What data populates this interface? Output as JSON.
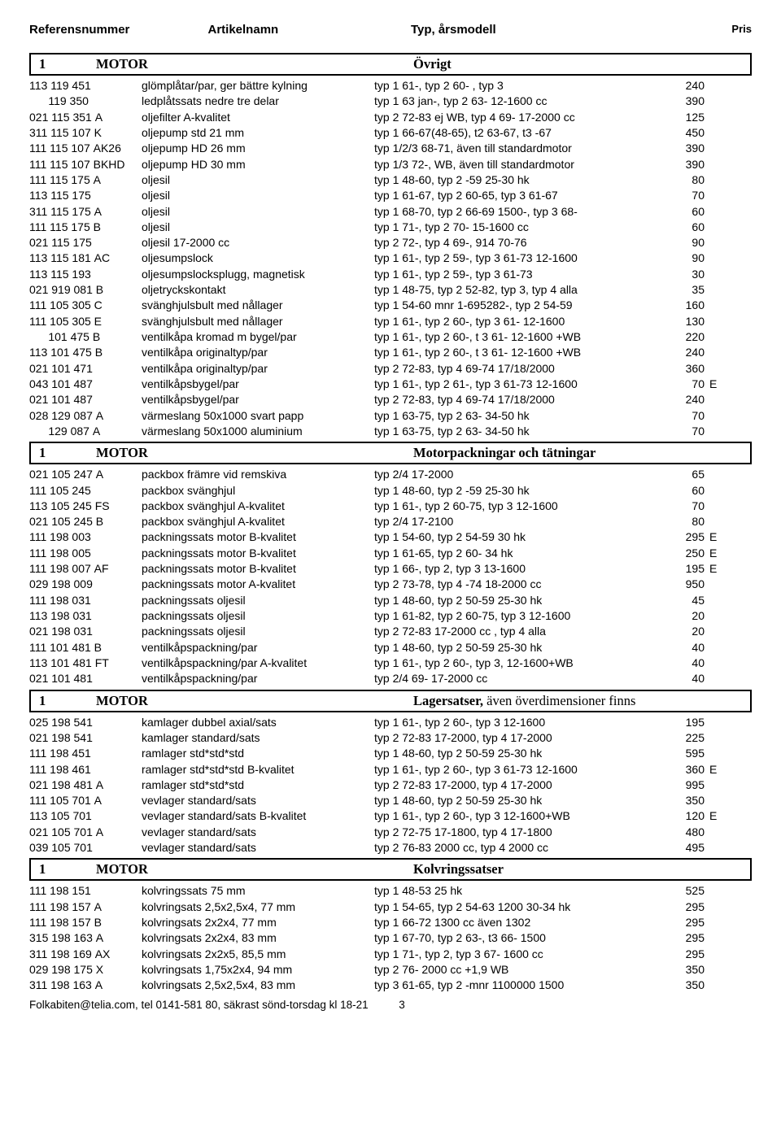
{
  "header": {
    "ref": "Referensnummer",
    "art": "Artikelnamn",
    "typ": "Typ, årsmodell",
    "pris": "Pris"
  },
  "sections": [
    {
      "num": "1",
      "title": "MOTOR",
      "sub": "Övrigt",
      "rows": [
        {
          "ref": "113 119 451",
          "art": "glömplåtar/par, ger bättre kylning",
          "typ": "typ 1 61-, typ 2 60- , typ 3",
          "pris": "240",
          "mark": ""
        },
        {
          "ref": "      119 350",
          "art": "ledplåtssats nedre tre delar",
          "typ": "typ 1 63 jan-, typ 2 63- 12-1600 cc",
          "pris": "390",
          "mark": ""
        },
        {
          "ref": "021 115 351 A",
          "art": "oljefilter A-kvalitet",
          "typ": "typ 2 72-83 ej WB, typ 4 69- 17-2000 cc",
          "pris": "125",
          "mark": ""
        },
        {
          "ref": "311 115 107 K",
          "art": "oljepump std 21 mm",
          "typ": "typ 1 66-67(48-65), t2 63-67, t3 -67",
          "pris": "450",
          "mark": ""
        },
        {
          "ref": "111 115 107 AK26",
          "art": "oljepump HD 26 mm",
          "typ": "typ 1/2/3 68-71, även till standardmotor",
          "pris": "390",
          "mark": ""
        },
        {
          "ref": "111 115 107 BKHD",
          "art": "oljepump HD 30 mm",
          "typ": "typ 1/3 72-, WB, även till standardmotor",
          "pris": "390",
          "mark": ""
        },
        {
          "ref": "111 115 175 A",
          "art": "oljesil",
          "typ": "typ 1 48-60, typ 2 -59 25-30 hk",
          "pris": "80",
          "mark": ""
        },
        {
          "ref": "113 115 175",
          "art": "oljesil",
          "typ": "typ 1 61-67, typ 2 60-65, typ 3 61-67",
          "pris": "70",
          "mark": ""
        },
        {
          "ref": "311 115 175 A",
          "art": "oljesil",
          "typ": "typ 1 68-70, typ 2 66-69 1500-, typ 3 68-",
          "pris": "60",
          "mark": ""
        },
        {
          "ref": "111 115 175 B",
          "art": "oljesil",
          "typ": "typ 1 71-, typ 2 70- 15-1600 cc",
          "pris": "60",
          "mark": ""
        },
        {
          "ref": "021 115 175",
          "art": "oljesil 17-2000 cc",
          "typ": "typ 2 72-, typ 4 69-, 914 70-76",
          "pris": "90",
          "mark": ""
        },
        {
          "ref": "113 115 181 AC",
          "art": "oljesumpslock",
          "typ": "typ 1 61-, typ 2 59-, typ 3 61-73 12-1600",
          "pris": "90",
          "mark": ""
        },
        {
          "ref": "113 115 193",
          "art": "oljesumpslocksplugg, magnetisk",
          "typ": "typ 1 61-, typ 2 59-, typ 3 61-73",
          "pris": "30",
          "mark": ""
        },
        {
          "ref": "021 919 081 B",
          "art": "oljetryckskontakt",
          "typ": "typ 1 48-75, typ 2 52-82, typ 3, typ 4 alla",
          "pris": "35",
          "mark": ""
        },
        {
          "ref": "111 105 305 C",
          "art": "svänghjulsbult med nållager",
          "typ": "typ 1 54-60 mnr 1-695282-, typ 2 54-59",
          "pris": "160",
          "mark": ""
        },
        {
          "ref": "111 105 305 E",
          "art": "svänghjulsbult med nållager",
          "typ": "typ 1 61-, typ 2 60-, typ 3 61- 12-1600",
          "pris": "130",
          "mark": ""
        },
        {
          "ref": "      101 475 B",
          "art": "ventilkåpa kromad m bygel/par",
          "typ": "typ 1 61-, typ 2 60-, t 3 61- 12-1600 +WB",
          "pris": "220",
          "mark": ""
        },
        {
          "ref": "113 101 475 B",
          "art": "ventilkåpa originaltyp/par",
          "typ": "typ 1 61-, typ 2 60-, t 3 61- 12-1600 +WB",
          "pris": "240",
          "mark": ""
        },
        {
          "ref": "021 101 471",
          "art": "ventilkåpa originaltyp/par",
          "typ": "typ 2 72-83, typ 4 69-74 17/18/2000",
          "pris": "360",
          "mark": ""
        },
        {
          "ref": "043 101 487",
          "art": "ventilkåpsbygel/par",
          "typ": "typ 1 61-, typ 2 61-, typ 3 61-73 12-1600",
          "pris": "70",
          "mark": "E"
        },
        {
          "ref": "021 101 487",
          "art": "ventilkåpsbygel/par",
          "typ": "typ 2 72-83, typ 4 69-74 17/18/2000",
          "pris": "240",
          "mark": ""
        },
        {
          "ref": "028 129 087 A",
          "art": "värmeslang 50x1000 svart papp",
          "typ": "typ 1 63-75, typ 2 63- 34-50 hk",
          "pris": "70",
          "mark": ""
        },
        {
          "ref": "      129 087 A",
          "art": "värmeslang 50x1000 aluminium",
          "typ": "typ 1 63-75, typ 2 63- 34-50 hk",
          "pris": "70",
          "mark": ""
        }
      ]
    },
    {
      "num": "1",
      "title": "MOTOR",
      "sub": "Motorpackningar och tätningar",
      "rows": [
        {
          "ref": "021 105 247 A",
          "art": "packbox främre vid remskiva",
          "typ": "typ 2/4 17-2000",
          "pris": "65",
          "mark": ""
        },
        {
          "ref": "111 105 245",
          "art": "packbox svänghjul",
          "typ": "typ 1 48-60, typ 2 -59  25-30 hk",
          "pris": "60",
          "mark": ""
        },
        {
          "ref": "113 105 245 FS",
          "art": "packbox svänghjul A-kvalitet",
          "typ": "typ 1 61-, typ 2 60-75, typ 3 12-1600",
          "pris": "70",
          "mark": ""
        },
        {
          "ref": "021 105 245 B",
          "art": "packbox svänghjul A-kvalitet",
          "typ": "typ 2/4 17-2100",
          "pris": "80",
          "mark": ""
        },
        {
          "ref": "111 198 003",
          "art": "packningssats motor B-kvalitet",
          "typ": "typ 1 54-60, typ 2 54-59 30 hk",
          "pris": "295",
          "mark": "E"
        },
        {
          "ref": "111 198 005",
          "art": "packningssats motor B-kvalitet",
          "typ": "typ 1 61-65, typ 2 60- 34 hk",
          "pris": "250",
          "mark": "E"
        },
        {
          "ref": "111 198 007 AF",
          "art": "packningssats motor B-kvalitet",
          "typ": "typ 1 66-, typ 2, typ 3 13-1600",
          "pris": "195",
          "mark": "E"
        },
        {
          "ref": "029 198 009",
          "art": "packningssats motor A-kvalitet",
          "typ": "typ 2 73-78, typ 4 -74 18-2000 cc",
          "pris": "950",
          "mark": ""
        },
        {
          "ref": "111 198 031",
          "art": "packningssats oljesil",
          "typ": "typ 1 48-60, typ 2 50-59 25-30 hk",
          "pris": "45",
          "mark": ""
        },
        {
          "ref": "113 198 031",
          "art": "packningssats oljesil",
          "typ": "typ 1 61-82, typ 2 60-75, typ 3 12-1600",
          "pris": "20",
          "mark": ""
        },
        {
          "ref": "021 198 031",
          "art": "packningssats oljesil",
          "typ": "typ 2 72-83 17-2000 cc , typ 4 alla",
          "pris": "20",
          "mark": ""
        },
        {
          "ref": "111 101 481 B",
          "art": "ventilkåpspackning/par",
          "typ": "typ 1 48-60, typ 2 50-59 25-30 hk",
          "pris": "40",
          "mark": ""
        },
        {
          "ref": "113 101 481 FT",
          "art": "ventilkåpspackning/par A-kvalitet",
          "typ": "typ 1 61-, typ 2 60-, typ 3, 12-1600+WB",
          "pris": "40",
          "mark": ""
        },
        {
          "ref": "021 101 481",
          "art": "ventilkåpspackning/par",
          "typ": "typ 2/4 69- 17-2000 cc",
          "pris": "40",
          "mark": ""
        }
      ]
    },
    {
      "num": "1",
      "title": "MOTOR",
      "sub_html": "Lagersatser, <span class='thin'>även överdimensioner finns</span>",
      "rows": [
        {
          "ref": "025 198 541",
          "art": "kamlager dubbel axial/sats",
          "typ": "typ 1 61-, typ 2 60-, typ 3 12-1600",
          "pris": "195",
          "mark": ""
        },
        {
          "ref": "021 198 541",
          "art": "kamlager standard/sats",
          "typ": "typ 2 72-83 17-2000, typ 4 17-2000",
          "pris": "225",
          "mark": ""
        },
        {
          "ref": "111 198 451",
          "art": "ramlager std*std*std",
          "typ": "typ 1 48-60, typ 2 50-59 25-30 hk",
          "pris": "595",
          "mark": ""
        },
        {
          "ref": "111 198 461",
          "art": "ramlager std*std*std B-kvalitet",
          "typ": "typ 1 61-, typ 2 60-, typ 3 61-73 12-1600",
          "pris": "360",
          "mark": "E"
        },
        {
          "ref": "021 198 481 A",
          "art": "ramlager std*std*std",
          "typ": "typ 2 72-83 17-2000, typ 4 17-2000",
          "pris": "995",
          "mark": ""
        },
        {
          "ref": "111 105 701 A",
          "art": "vevlager standard/sats",
          "typ": "typ 1 48-60, typ 2 50-59 25-30 hk",
          "pris": "350",
          "mark": ""
        },
        {
          "ref": "113 105 701",
          "art": "vevlager standard/sats B-kvalitet",
          "typ": "typ 1 61-, typ 2 60-, typ 3 12-1600+WB",
          "pris": "120",
          "mark": "E"
        },
        {
          "ref": "021 105 701 A",
          "art": "vevlager standard/sats",
          "typ": "typ 2 72-75 17-1800, typ 4 17-1800",
          "pris": "480",
          "mark": ""
        },
        {
          "ref": "039 105 701",
          "art": "vevlager standard/sats",
          "typ": "typ 2 76-83 2000 cc, typ 4 2000 cc",
          "pris": "495",
          "mark": ""
        }
      ]
    },
    {
      "num": "1",
      "title": "MOTOR",
      "sub": "Kolvringssatser",
      "rows": [
        {
          "ref": "111 198 151",
          "art": "kolvringssats 75 mm",
          "typ": "typ 1 48-53  25 hk",
          "pris": "525",
          "mark": ""
        },
        {
          "ref": "111 198 157 A",
          "art": "kolvringsats 2,5x2,5x4, 77 mm",
          "typ": "typ 1 54-65, typ 2 54-63 1200 30-34 hk",
          "pris": "295",
          "mark": ""
        },
        {
          "ref": "111 198 157 B",
          "art": "kolvringsats 2x2x4, 77 mm",
          "typ": "typ 1 66-72 1300 cc även 1302",
          "pris": "295",
          "mark": ""
        },
        {
          "ref": "315 198 163 A",
          "art": "kolvringsats 2x2x4, 83 mm",
          "typ": "typ 1 67-70, typ 2 63-, t3 66- 1500",
          "pris": "295",
          "mark": ""
        },
        {
          "ref": "311 198 169 AX",
          "art": "kolvringsats 2x2x5, 85,5 mm",
          "typ": "typ 1 71-, typ 2,  typ 3 67- 1600 cc",
          "pris": "295",
          "mark": ""
        },
        {
          "ref": "029 198 175 X",
          "art": "kolvringsats 1,75x2x4, 94 mm",
          "typ": "typ 2 76- 2000 cc +1,9 WB",
          "pris": "350",
          "mark": ""
        },
        {
          "ref": "311 198 163 A",
          "art": "kolvringsats 2,5x2,5x4, 83 mm",
          "typ": "typ 3 61-65, typ 2 -mnr 1100000 1500",
          "pris": "350",
          "mark": ""
        }
      ]
    }
  ],
  "footer": "Folkabiten@telia.com, tel 0141-581 80, säkrast sönd-torsdag kl 18-21",
  "page": "3"
}
